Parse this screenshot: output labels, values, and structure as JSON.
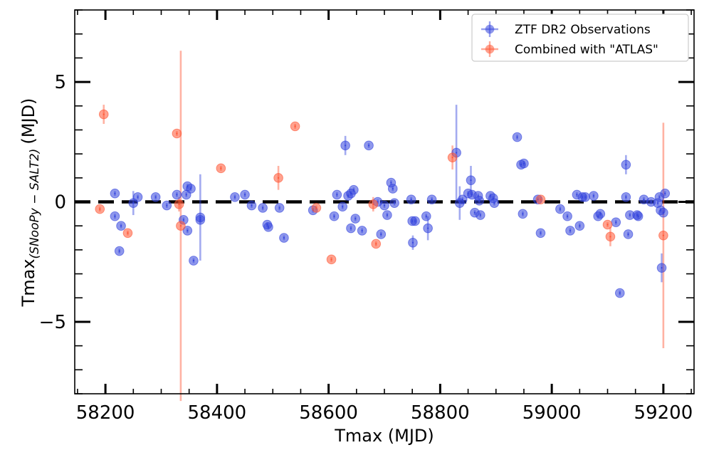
{
  "chart_data": {
    "type": "scatter",
    "title": "",
    "xlabel": "Tmax (MJD)",
    "ylabel_main": "Tmax",
    "ylabel_sub": "(SNooPy − SALT2)",
    "ylabel_unit": "(MJD)",
    "xlim": [
      58145,
      59255
    ],
    "ylim": [
      -8,
      8
    ],
    "xticks": [
      58200,
      58400,
      58600,
      58800,
      59000,
      59200
    ],
    "yticks": [
      -5,
      0,
      5
    ],
    "reference_line": 0,
    "legend_position": "top-right",
    "series": [
      {
        "name": "ZTF DR2 Observations",
        "color": "#3344dd",
        "points": [
          {
            "x": 58217,
            "y": 0.35,
            "err": 0.1
          },
          {
            "x": 58217,
            "y": -0.6,
            "err": 0.1
          },
          {
            "x": 58225,
            "y": -2.05,
            "err": 0.1
          },
          {
            "x": 58228,
            "y": -1.0,
            "err": 0.1
          },
          {
            "x": 58250,
            "y": -0.05,
            "err": 0.5
          },
          {
            "x": 58258,
            "y": 0.2,
            "err": 0.1
          },
          {
            "x": 58290,
            "y": 0.2,
            "err": 0.1
          },
          {
            "x": 58310,
            "y": -0.15,
            "err": 0.1
          },
          {
            "x": 58328,
            "y": 0.3,
            "err": 0.1
          },
          {
            "x": 58340,
            "y": -0.75,
            "err": 0.1
          },
          {
            "x": 58345,
            "y": 0.3,
            "err": 0.1
          },
          {
            "x": 58347,
            "y": -1.2,
            "err": 0.1
          },
          {
            "x": 58347,
            "y": 0.65,
            "err": 0.1
          },
          {
            "x": 58353,
            "y": 0.55,
            "err": 0.1
          },
          {
            "x": 58358,
            "y": -2.45,
            "err": 0.1
          },
          {
            "x": 58370,
            "y": -0.65,
            "err": 1.8
          },
          {
            "x": 58370,
            "y": -0.75,
            "err": 0.1
          },
          {
            "x": 58432,
            "y": 0.2,
            "err": 0.1
          },
          {
            "x": 58450,
            "y": 0.3,
            "err": 0.1
          },
          {
            "x": 58462,
            "y": -0.15,
            "err": 0.1
          },
          {
            "x": 58482,
            "y": -0.25,
            "err": 0.1
          },
          {
            "x": 58490,
            "y": -0.95,
            "err": 0.1
          },
          {
            "x": 58492,
            "y": -1.05,
            "err": 0.1
          },
          {
            "x": 58512,
            "y": -0.25,
            "err": 0.1
          },
          {
            "x": 58520,
            "y": -1.5,
            "err": 0.1
          },
          {
            "x": 58572,
            "y": -0.35,
            "err": 0.1
          },
          {
            "x": 58610,
            "y": -0.6,
            "err": 0.1
          },
          {
            "x": 58615,
            "y": 0.3,
            "err": 0.1
          },
          {
            "x": 58625,
            "y": -0.2,
            "err": 0.1
          },
          {
            "x": 58630,
            "y": 2.35,
            "err": 0.4
          },
          {
            "x": 58635,
            "y": 0.25,
            "err": 0.1
          },
          {
            "x": 58640,
            "y": 0.35,
            "err": 0.1
          },
          {
            "x": 58640,
            "y": -1.1,
            "err": 0.1
          },
          {
            "x": 58645,
            "y": 0.5,
            "err": 0.1
          },
          {
            "x": 58648,
            "y": -0.7,
            "err": 0.1
          },
          {
            "x": 58660,
            "y": -1.2,
            "err": 0.1
          },
          {
            "x": 58672,
            "y": 2.35,
            "err": 0.1
          },
          {
            "x": 58688,
            "y": 0.0,
            "err": 0.1
          },
          {
            "x": 58694,
            "y": -1.35,
            "err": 0.1
          },
          {
            "x": 58700,
            "y": -0.15,
            "err": 0.1
          },
          {
            "x": 58705,
            "y": -0.55,
            "err": 0.1
          },
          {
            "x": 58712,
            "y": 0.8,
            "err": 0.1
          },
          {
            "x": 58715,
            "y": 0.55,
            "err": 0.1
          },
          {
            "x": 58718,
            "y": -0.05,
            "err": 0.1
          },
          {
            "x": 58748,
            "y": 0.1,
            "err": 0.1
          },
          {
            "x": 58750,
            "y": -0.8,
            "err": 0.1
          },
          {
            "x": 58751,
            "y": -1.7,
            "err": 0.3
          },
          {
            "x": 58755,
            "y": -0.8,
            "err": 0.1
          },
          {
            "x": 58775,
            "y": -0.6,
            "err": 0.1
          },
          {
            "x": 58778,
            "y": -1.1,
            "err": 0.5
          },
          {
            "x": 58785,
            "y": 0.1,
            "err": 0.1
          },
          {
            "x": 58829,
            "y": 2.05,
            "err": 2.0
          },
          {
            "x": 58835,
            "y": -0.05,
            "err": 0.7
          },
          {
            "x": 58840,
            "y": 0.1,
            "err": 0.1
          },
          {
            "x": 58850,
            "y": 0.35,
            "err": 0.1
          },
          {
            "x": 58855,
            "y": 0.9,
            "err": 0.6
          },
          {
            "x": 58857,
            "y": 0.3,
            "err": 0.1
          },
          {
            "x": 58862,
            "y": -0.45,
            "err": 0.1
          },
          {
            "x": 58868,
            "y": 0.25,
            "err": 0.1
          },
          {
            "x": 58870,
            "y": 0.05,
            "err": 0.1
          },
          {
            "x": 58872,
            "y": -0.55,
            "err": 0.1
          },
          {
            "x": 58890,
            "y": 0.25,
            "err": 0.1
          },
          {
            "x": 58895,
            "y": 0.15,
            "err": 0.1
          },
          {
            "x": 58897,
            "y": -0.05,
            "err": 0.1
          },
          {
            "x": 58938,
            "y": 2.7,
            "err": 0.1
          },
          {
            "x": 58945,
            "y": 1.55,
            "err": 0.1
          },
          {
            "x": 58950,
            "y": 1.6,
            "err": 0.1
          },
          {
            "x": 58948,
            "y": -0.5,
            "err": 0.1
          },
          {
            "x": 58975,
            "y": 0.1,
            "err": 0.1
          },
          {
            "x": 58980,
            "y": -1.3,
            "err": 0.1
          },
          {
            "x": 59015,
            "y": -0.3,
            "err": 0.1
          },
          {
            "x": 59028,
            "y": -0.6,
            "err": 0.1
          },
          {
            "x": 59033,
            "y": -1.2,
            "err": 0.1
          },
          {
            "x": 59045,
            "y": 0.3,
            "err": 0.1
          },
          {
            "x": 59050,
            "y": -1.0,
            "err": 0.1
          },
          {
            "x": 59055,
            "y": 0.2,
            "err": 0.1
          },
          {
            "x": 59060,
            "y": 0.2,
            "err": 0.1
          },
          {
            "x": 59075,
            "y": 0.25,
            "err": 0.1
          },
          {
            "x": 59083,
            "y": -0.6,
            "err": 0.1
          },
          {
            "x": 59087,
            "y": -0.5,
            "err": 0.1
          },
          {
            "x": 59115,
            "y": -0.85,
            "err": 0.1
          },
          {
            "x": 59122,
            "y": -3.8,
            "err": 0.1
          },
          {
            "x": 59133,
            "y": 1.55,
            "err": 0.4
          },
          {
            "x": 59133,
            "y": 0.2,
            "err": 0.1
          },
          {
            "x": 59137,
            "y": -1.35,
            "err": 0.1
          },
          {
            "x": 59140,
            "y": -0.55,
            "err": 0.1
          },
          {
            "x": 59153,
            "y": -0.55,
            "err": 0.1
          },
          {
            "x": 59155,
            "y": -0.6,
            "err": 0.1
          },
          {
            "x": 59165,
            "y": 0.1,
            "err": 0.1
          },
          {
            "x": 59178,
            "y": 0.0,
            "err": 0.1
          },
          {
            "x": 59190,
            "y": -0.05,
            "err": 0.1
          },
          {
            "x": 59193,
            "y": 0.2,
            "err": 0.1
          },
          {
            "x": 59195,
            "y": -0.35,
            "err": 0.1
          },
          {
            "x": 59197,
            "y": -2.75,
            "err": 0.6
          },
          {
            "x": 59200,
            "y": -0.45,
            "err": 0.1
          },
          {
            "x": 59203,
            "y": 0.35,
            "err": 0.1
          }
        ]
      },
      {
        "name": "Combined with \"ATLAS\"",
        "color": "#ff5533",
        "points": [
          {
            "x": 58190,
            "y": -0.3,
            "err": 0.1
          },
          {
            "x": 58197,
            "y": 3.65,
            "err": 0.4
          },
          {
            "x": 58240,
            "y": -1.3,
            "err": 0.1
          },
          {
            "x": 58328,
            "y": 2.85,
            "err": 0.1
          },
          {
            "x": 58332,
            "y": -0.1,
            "err": 0.3
          },
          {
            "x": 58335,
            "y": -1.0,
            "err": 7.3
          },
          {
            "x": 58407,
            "y": 1.4,
            "err": 0.1
          },
          {
            "x": 58510,
            "y": 1.0,
            "err": 0.5
          },
          {
            "x": 58540,
            "y": 3.15,
            "err": 0.1
          },
          {
            "x": 58578,
            "y": -0.25,
            "err": 0.1
          },
          {
            "x": 58605,
            "y": -2.4,
            "err": 0.1
          },
          {
            "x": 58680,
            "y": -0.1,
            "err": 0.3
          },
          {
            "x": 58685,
            "y": -1.75,
            "err": 0.1
          },
          {
            "x": 58822,
            "y": 1.85,
            "err": 0.5
          },
          {
            "x": 58980,
            "y": 0.1,
            "err": 0.1
          },
          {
            "x": 59100,
            "y": -0.95,
            "err": 0.1
          },
          {
            "x": 59105,
            "y": -1.45,
            "err": 0.4
          },
          {
            "x": 59200,
            "y": -1.4,
            "err": 4.7
          }
        ]
      }
    ]
  }
}
